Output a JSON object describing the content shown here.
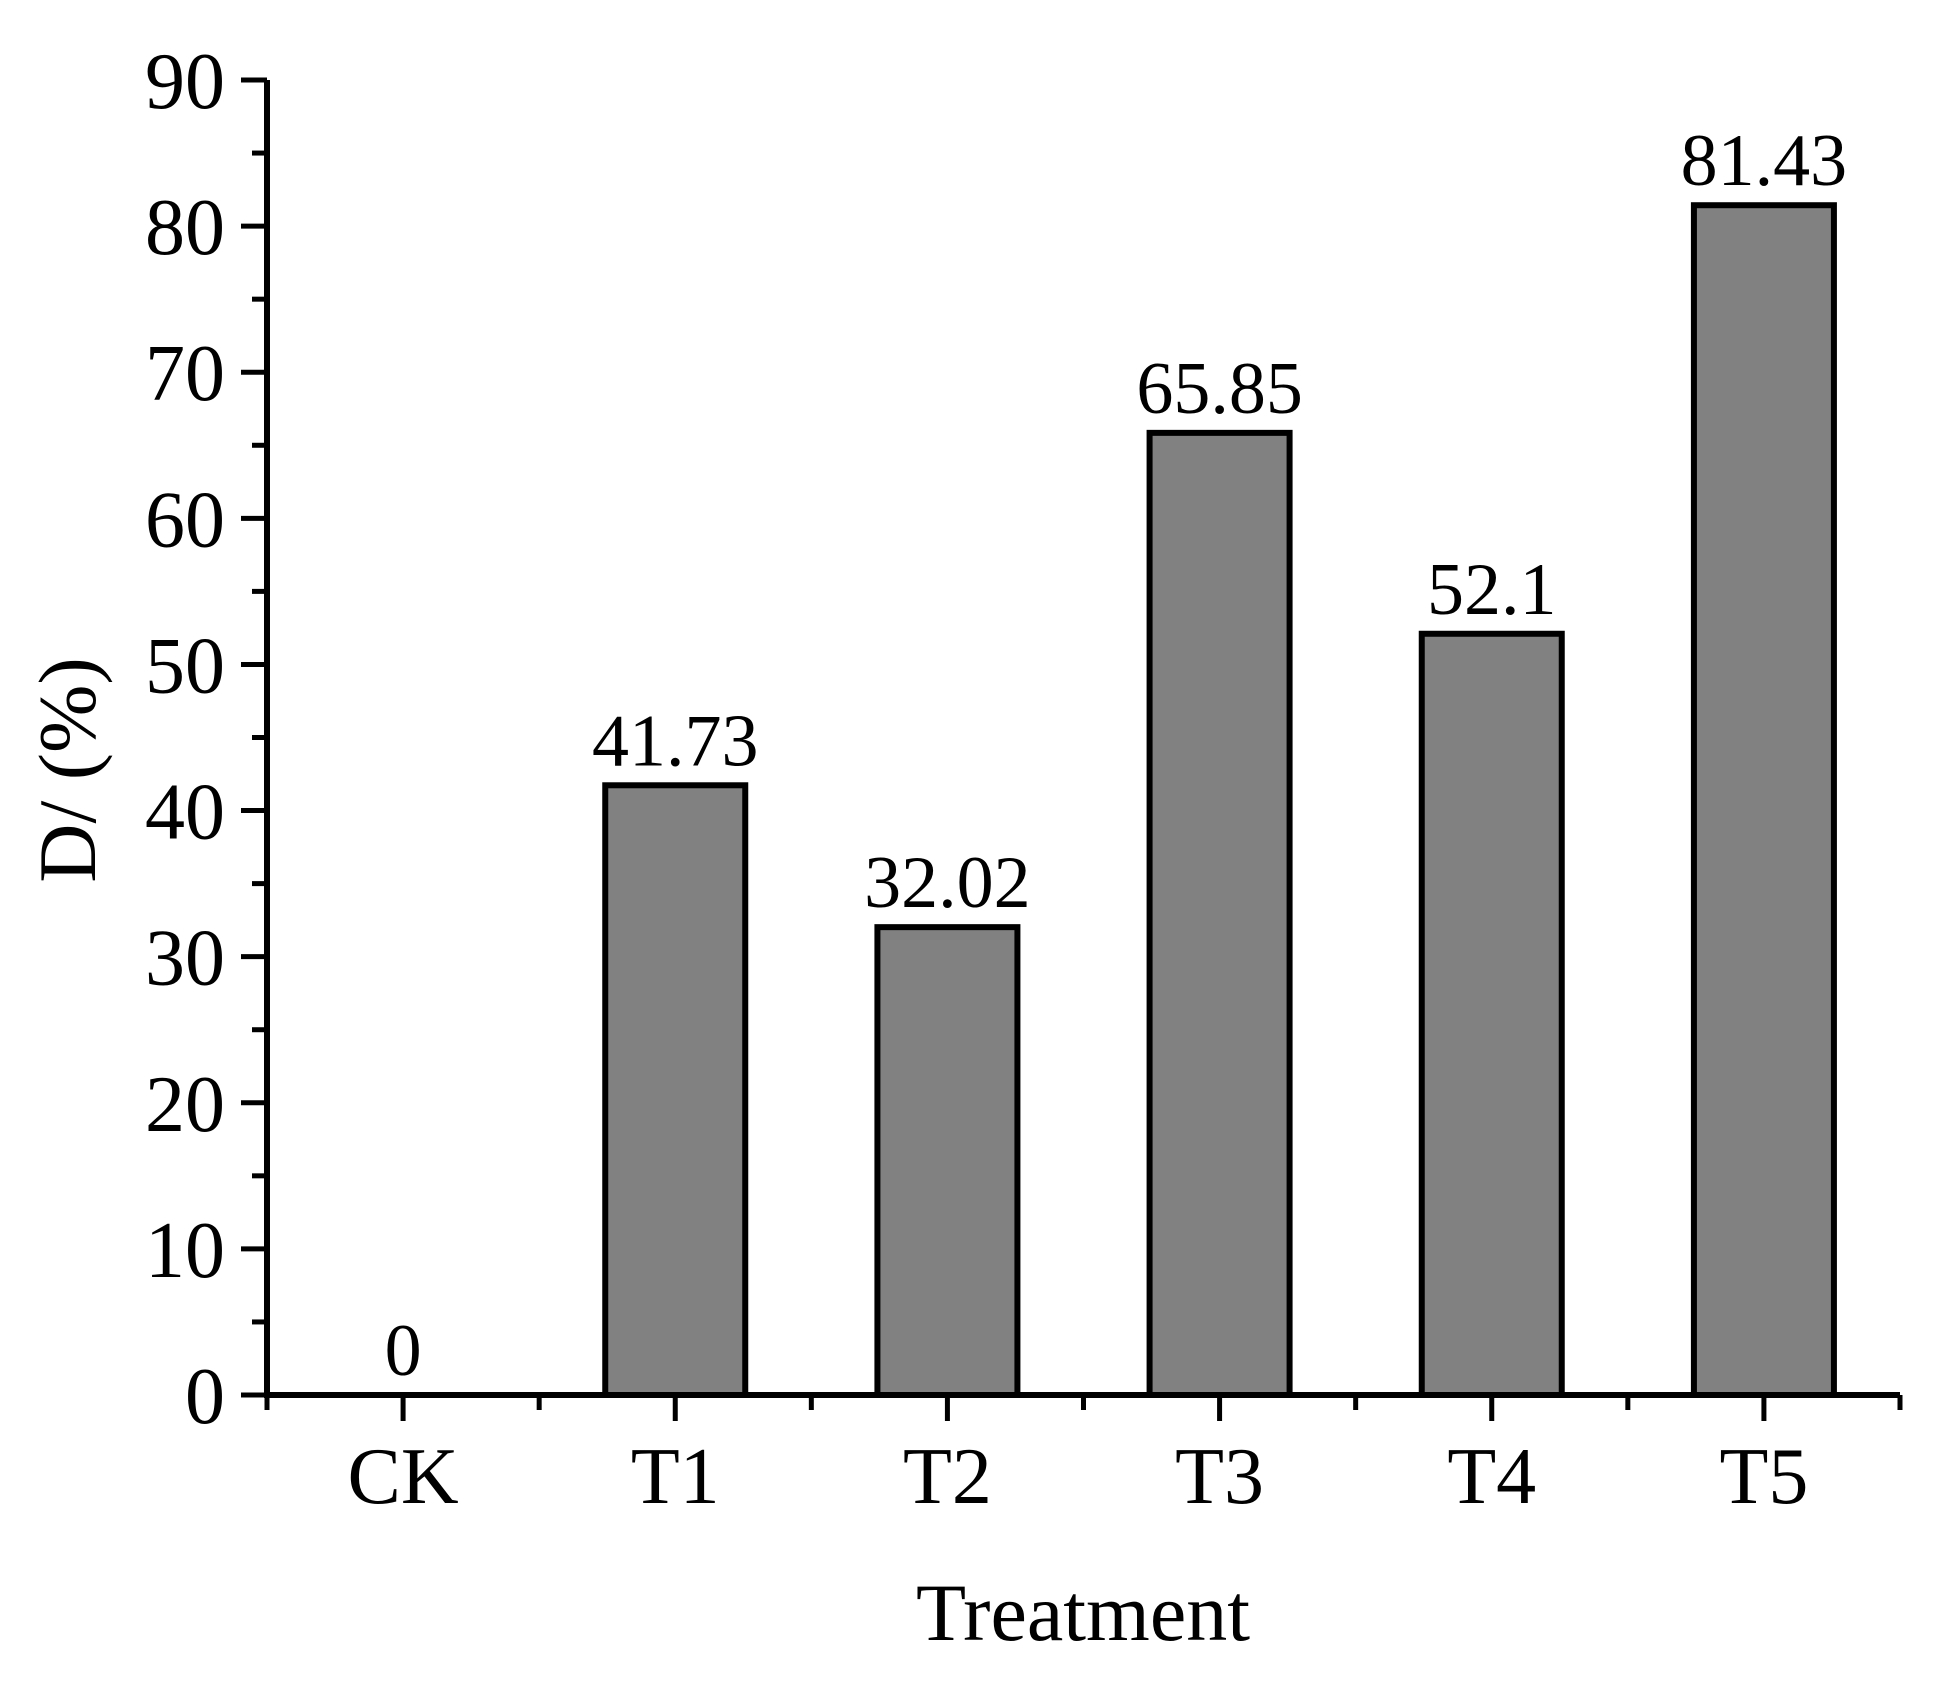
{
  "chart_data": {
    "type": "bar",
    "title": "",
    "xlabel": "Treatment",
    "ylabel": "D/ (%)",
    "categories": [
      "CK",
      "T1",
      "T2",
      "T3",
      "T4",
      "T5"
    ],
    "values": [
      0,
      41.73,
      32.02,
      65.85,
      52.1,
      81.43
    ],
    "value_labels": [
      "0",
      "41.73",
      "32.02",
      "65.85",
      "52.1",
      "81.43"
    ],
    "ylim": [
      0,
      90
    ],
    "yticks": [
      0,
      10,
      20,
      30,
      40,
      50,
      60,
      70,
      80,
      90
    ],
    "ytick_step": 10,
    "yminor_step": 5,
    "grid": false,
    "legend": null,
    "colors": {
      "bar_fill": "#818181",
      "bar_border": "#000000",
      "axis": "#000000",
      "text": "#000000",
      "background": "#ffffff"
    }
  }
}
